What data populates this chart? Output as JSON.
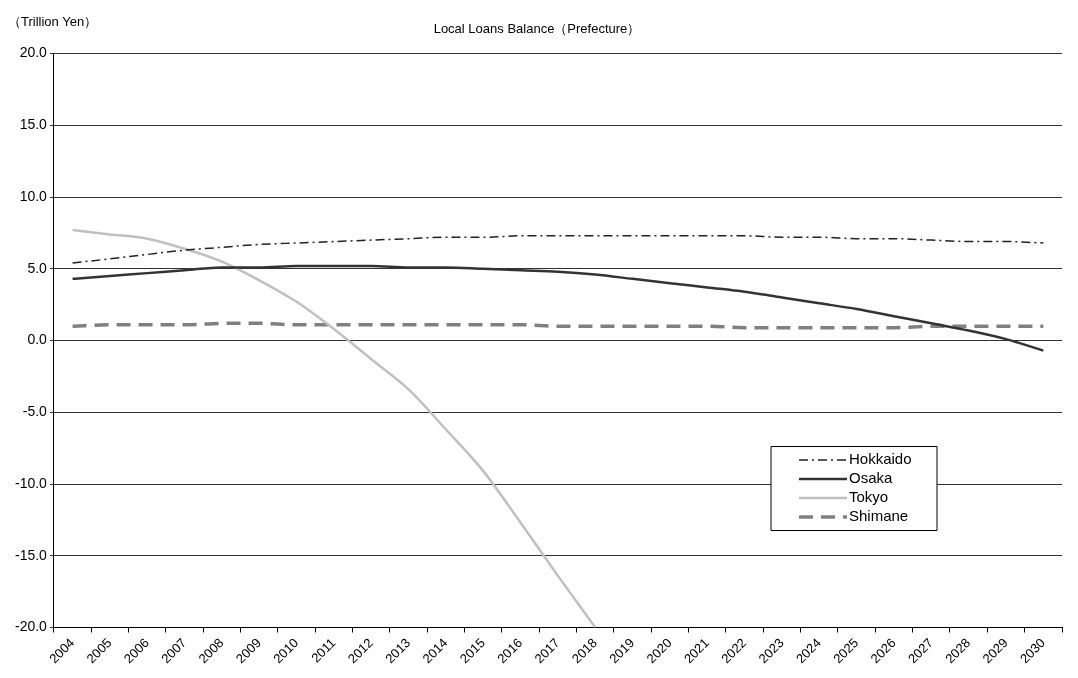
{
  "chart_data": {
    "type": "line",
    "title": "Local Loans Balance（Prefecture）",
    "ylabel": "（Trillion Yen）",
    "categories": [
      "2004",
      "2005",
      "2006",
      "2007",
      "2008",
      "2009",
      "2010",
      "2011",
      "2012",
      "2013",
      "2014",
      "2015",
      "2016",
      "2017",
      "2018",
      "2019",
      "2020",
      "2021",
      "2022",
      "2023",
      "2024",
      "2025",
      "2026",
      "2027",
      "2028",
      "2029",
      "2030"
    ],
    "series": [
      {
        "name": "Hokkaido",
        "color": "#222222",
        "line_style": "dashdot",
        "values": [
          5.4,
          5.7,
          6.0,
          6.3,
          6.5,
          6.7,
          6.8,
          6.9,
          7.0,
          7.1,
          7.2,
          7.2,
          7.3,
          7.3,
          7.3,
          7.3,
          7.3,
          7.3,
          7.3,
          7.2,
          7.2,
          7.1,
          7.1,
          7.0,
          6.9,
          6.9,
          6.8
        ]
      },
      {
        "name": "Osaka",
        "color": "#333333",
        "line_style": "solid",
        "values": [
          4.3,
          4.5,
          4.7,
          4.9,
          5.1,
          5.1,
          5.2,
          5.2,
          5.2,
          5.1,
          5.1,
          5.0,
          4.9,
          4.8,
          4.6,
          4.3,
          4.0,
          3.7,
          3.4,
          3.0,
          2.6,
          2.2,
          1.7,
          1.2,
          0.7,
          0.1,
          -0.7
        ]
      },
      {
        "name": "Tokyo",
        "color": "#c0c0c0",
        "line_style": "solid",
        "values": [
          7.7,
          7.4,
          7.1,
          6.4,
          5.5,
          4.2,
          2.7,
          0.8,
          -1.3,
          -3.4,
          -6.2,
          -9.1,
          -12.7,
          -16.4,
          -20,
          null,
          null,
          null,
          null,
          null,
          null,
          null,
          null,
          null,
          null,
          null,
          null
        ]
      },
      {
        "name": "Shimane",
        "color": "#808080",
        "line_style": "dashed",
        "values": [
          1.0,
          1.1,
          1.1,
          1.1,
          1.2,
          1.2,
          1.1,
          1.1,
          1.1,
          1.1,
          1.1,
          1.1,
          1.1,
          1.0,
          1.0,
          1.0,
          1.0,
          1.0,
          0.9,
          0.9,
          0.9,
          0.9,
          0.9,
          1.0,
          1.0,
          1.0,
          1.0
        ]
      }
    ],
    "ylim": [
      -20,
      20
    ],
    "yticks": [
      {
        "value": -20,
        "label": "-20.0"
      },
      {
        "value": -15,
        "label": "-15.0"
      },
      {
        "value": -10,
        "label": "-10.0"
      },
      {
        "value": -5,
        "label": "-5.0"
      },
      {
        "value": 0,
        "label": "0.0"
      },
      {
        "value": 5,
        "label": "5.0"
      },
      {
        "value": 10,
        "label": "10.0"
      },
      {
        "value": 15,
        "label": "15.0"
      },
      {
        "value": 20,
        "label": "20.0"
      }
    ],
    "grid": "y",
    "legend": "bottom right",
    "marker": "none"
  }
}
